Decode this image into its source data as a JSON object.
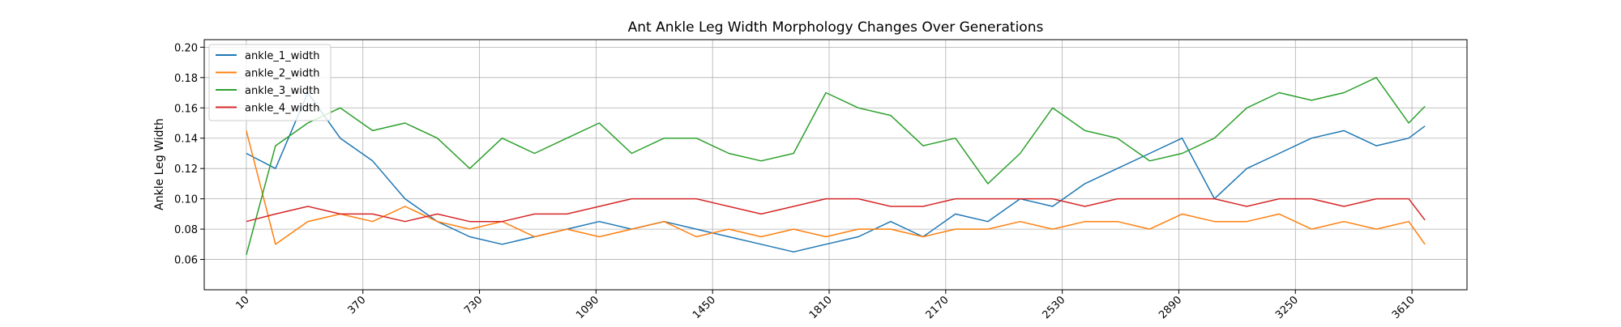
{
  "chart_data": {
    "type": "line",
    "title": "Ant Ankle Leg Width Morphology Changes Over Generations",
    "xlabel": "",
    "ylabel": "Ankle Leg Width",
    "xlim": [
      -120,
      3780
    ],
    "ylim": [
      0.04,
      0.205
    ],
    "x_ticks": [
      10,
      370,
      730,
      1090,
      1450,
      1810,
      2170,
      2530,
      2890,
      3250,
      3610
    ],
    "y_ticks": [
      0.06,
      0.08,
      0.1,
      0.12,
      0.14,
      0.16,
      0.18,
      0.2
    ],
    "y_tick_labels": [
      "0.06",
      "0.08",
      "0.10",
      "0.12",
      "0.14",
      "0.16",
      "0.18",
      "0.20"
    ],
    "grid": true,
    "legend_position": "top-left",
    "x": [
      10,
      100,
      200,
      300,
      400,
      500,
      600,
      700,
      800,
      900,
      1000,
      1100,
      1200,
      1300,
      1400,
      1500,
      1600,
      1700,
      1800,
      1900,
      2000,
      2100,
      2200,
      2300,
      2400,
      2500,
      2600,
      2700,
      2800,
      2900,
      3000,
      3100,
      3200,
      3300,
      3400,
      3500,
      3600,
      3650
    ],
    "series": [
      {
        "name": "ankle_1_width",
        "color": "#1f77b4",
        "values": [
          0.13,
          0.12,
          0.17,
          0.14,
          0.125,
          0.1,
          0.085,
          0.075,
          0.07,
          0.075,
          0.08,
          0.085,
          0.08,
          0.085,
          0.08,
          0.075,
          0.07,
          0.065,
          0.07,
          0.075,
          0.085,
          0.075,
          0.09,
          0.085,
          0.1,
          0.095,
          0.11,
          0.12,
          0.13,
          0.14,
          0.1,
          0.12,
          0.13,
          0.14,
          0.145,
          0.135,
          0.14,
          0.148
        ]
      },
      {
        "name": "ankle_2_width",
        "color": "#ff7f0e",
        "values": [
          0.145,
          0.07,
          0.085,
          0.09,
          0.085,
          0.095,
          0.085,
          0.08,
          0.085,
          0.075,
          0.08,
          0.075,
          0.08,
          0.085,
          0.075,
          0.08,
          0.075,
          0.08,
          0.075,
          0.08,
          0.08,
          0.075,
          0.08,
          0.08,
          0.085,
          0.08,
          0.085,
          0.085,
          0.08,
          0.09,
          0.085,
          0.085,
          0.09,
          0.08,
          0.085,
          0.08,
          0.085,
          0.07
        ]
      },
      {
        "name": "ankle_3_width",
        "color": "#2ca02c",
        "values": [
          0.063,
          0.135,
          0.15,
          0.16,
          0.145,
          0.15,
          0.14,
          0.12,
          0.14,
          0.13,
          0.14,
          0.15,
          0.13,
          0.14,
          0.14,
          0.13,
          0.125,
          0.13,
          0.17,
          0.16,
          0.155,
          0.135,
          0.14,
          0.11,
          0.13,
          0.16,
          0.145,
          0.14,
          0.125,
          0.13,
          0.14,
          0.16,
          0.17,
          0.165,
          0.17,
          0.18,
          0.15,
          0.161
        ]
      },
      {
        "name": "ankle_4_width",
        "color": "#d62728",
        "values": [
          0.085,
          0.09,
          0.095,
          0.09,
          0.09,
          0.085,
          0.09,
          0.085,
          0.085,
          0.09,
          0.09,
          0.095,
          0.1,
          0.1,
          0.1,
          0.095,
          0.09,
          0.095,
          0.1,
          0.1,
          0.095,
          0.095,
          0.1,
          0.1,
          0.1,
          0.1,
          0.095,
          0.1,
          0.1,
          0.1,
          0.1,
          0.095,
          0.1,
          0.1,
          0.095,
          0.1,
          0.1,
          0.086
        ]
      }
    ]
  }
}
